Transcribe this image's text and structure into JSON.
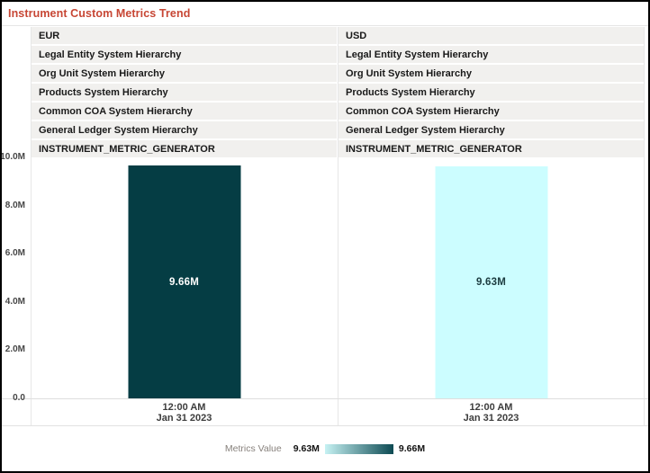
{
  "title": "Instrument Custom Metrics Trend",
  "colors": {
    "title_accent": "#c74634",
    "row_background": "#f1f0ee",
    "bar_eur": "#053d44",
    "bar_usd": "#ccfdff",
    "frame_line": "#e7e7e7"
  },
  "y_axis": {
    "max": 10,
    "ticks": [
      {
        "label": "10.0M",
        "value": 10
      },
      {
        "label": "8.0M",
        "value": 8
      },
      {
        "label": "6.0M",
        "value": 6
      },
      {
        "label": "4.0M",
        "value": 4
      },
      {
        "label": "2.0M",
        "value": 2
      },
      {
        "label": "0.0",
        "value": 0
      }
    ]
  },
  "panels": [
    {
      "currency": "EUR",
      "rows": [
        "Legal Entity System Hierarchy",
        "Org Unit System Hierarchy",
        "Products System Hierarchy",
        "Common COA System Hierarchy",
        "General Ledger System Hierarchy",
        "INSTRUMENT_METRIC_GENERATOR"
      ],
      "bar": {
        "value": 9.66,
        "label": "9.66M",
        "color": "#053d44",
        "label_color": "#ffffff"
      },
      "x_label_line1": "12:00 AM",
      "x_label_line2": "Jan 31 2023"
    },
    {
      "currency": "USD",
      "rows": [
        "Legal Entity System Hierarchy",
        "Org Unit System Hierarchy",
        "Products System Hierarchy",
        "Common COA System Hierarchy",
        "General Ledger System Hierarchy",
        "INSTRUMENT_METRIC_GENERATOR"
      ],
      "bar": {
        "value": 9.63,
        "label": "9.63M",
        "color": "#ccfdff",
        "label_color": "#1c3c40"
      },
      "x_label_line1": "12:00 AM",
      "x_label_line2": "Jan 31 2023"
    }
  ],
  "legend": {
    "label": "Metrics Value",
    "min_label": "9.63M",
    "max_label": "9.66M",
    "gradient_start": "#c6f2f3",
    "gradient_end": "#0d4a53"
  },
  "chart_data": [
    {
      "type": "bar",
      "title": "EUR",
      "categories": [
        "12:00 AM Jan 31 2023"
      ],
      "values": [
        9660000
      ],
      "value_labels": [
        "9.66M"
      ],
      "xlabel": "",
      "ylabel": "",
      "ylim": [
        0,
        10000000
      ],
      "ytick_labels": [
        "0.0",
        "2.0M",
        "4.0M",
        "6.0M",
        "8.0M",
        "10.0M"
      ],
      "grid": false,
      "bar_color": "#053d44",
      "legend_position": "bottom",
      "header_annotations": [
        "Legal Entity System Hierarchy",
        "Org Unit System Hierarchy",
        "Products System Hierarchy",
        "Common COA System Hierarchy",
        "General Ledger System Hierarchy",
        "INSTRUMENT_METRIC_GENERATOR"
      ]
    },
    {
      "type": "bar",
      "title": "USD",
      "categories": [
        "12:00 AM Jan 31 2023"
      ],
      "values": [
        9630000
      ],
      "value_labels": [
        "9.63M"
      ],
      "xlabel": "",
      "ylabel": "",
      "ylim": [
        0,
        10000000
      ],
      "ytick_labels": [
        "0.0",
        "2.0M",
        "4.0M",
        "6.0M",
        "8.0M",
        "10.0M"
      ],
      "grid": false,
      "bar_color": "#ccfdff",
      "legend_position": "bottom",
      "header_annotations": [
        "Legal Entity System Hierarchy",
        "Org Unit System Hierarchy",
        "Products System Hierarchy",
        "Common COA System Hierarchy",
        "General Ledger System Hierarchy",
        "INSTRUMENT_METRIC_GENERATOR"
      ]
    }
  ]
}
